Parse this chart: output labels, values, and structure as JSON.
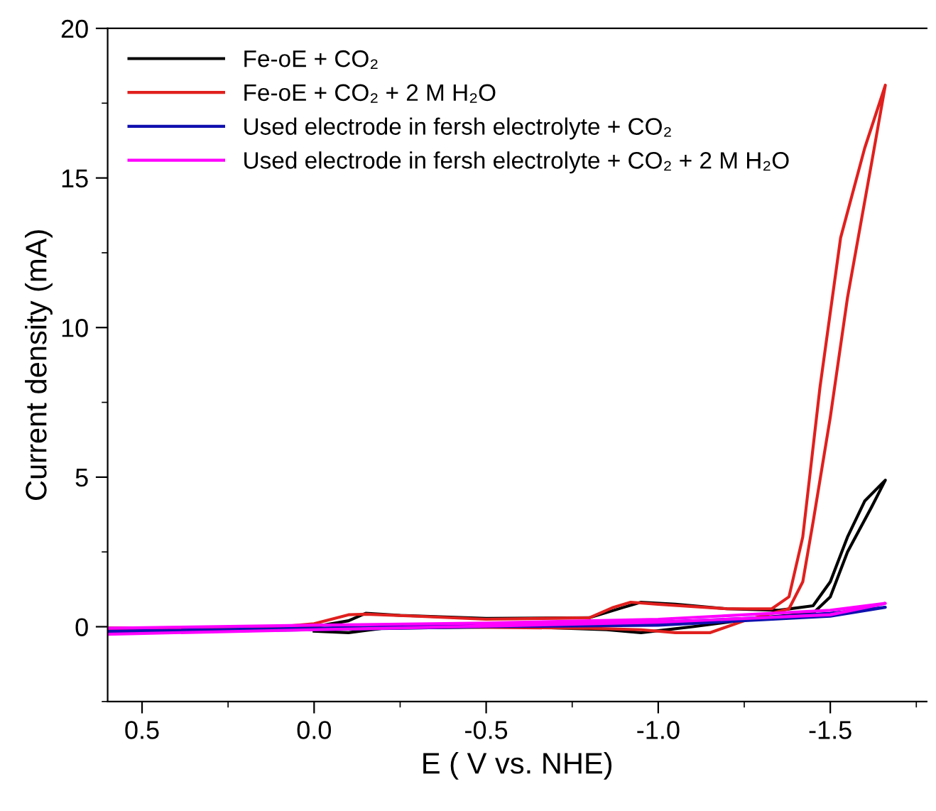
{
  "chart_data": {
    "type": "line",
    "xlabel": "E ( V vs. NHE)",
    "ylabel": "Current density (mA)",
    "xlim": [
      0.6,
      -1.78
    ],
    "ylim": [
      -2.5,
      20
    ],
    "xticks": [
      0.5,
      {
        "value": 0,
        "label": "0.0"
      },
      -0.5,
      {
        "value": -1,
        "label": "-1.0"
      },
      -1.5
    ],
    "yticks": [
      0,
      5,
      10,
      15,
      20
    ],
    "legend": "top left",
    "grid": false,
    "marker": "none",
    "line_style": "solid",
    "series": [
      {
        "name": "Fe-oE + CO₂",
        "color": "#000000",
        "x": [
          0.6,
          0.2,
          0.0,
          -0.1,
          -0.15,
          -0.25,
          -0.5,
          -0.8,
          -0.9,
          -0.95,
          -1.05,
          -1.2,
          -1.35,
          -1.45,
          -1.5,
          -1.55,
          -1.6,
          -1.66,
          -1.62,
          -1.55,
          -1.5,
          -1.45,
          -1.3,
          -1.1,
          -0.95,
          -0.85,
          -0.6,
          -0.2,
          -0.1,
          0.0
        ],
        "values": [
          -0.05,
          -0.05,
          0.0,
          0.2,
          0.45,
          0.38,
          0.28,
          0.3,
          0.65,
          0.82,
          0.75,
          0.6,
          0.55,
          0.7,
          1.5,
          3.0,
          4.2,
          4.9,
          4.0,
          2.5,
          1.0,
          0.45,
          0.3,
          0.0,
          -0.2,
          -0.1,
          0.0,
          -0.05,
          -0.2,
          -0.15
        ]
      },
      {
        "name": "Fe-oE + CO₂ + 2 M H₂O",
        "color": "#e0201e",
        "x": [
          0.6,
          0.1,
          0.0,
          -0.1,
          -0.15,
          -0.3,
          -0.5,
          -0.8,
          -0.87,
          -0.92,
          -1.0,
          -1.2,
          -1.33,
          -1.38,
          -1.42,
          -1.47,
          -1.53,
          -1.6,
          -1.66,
          -1.62,
          -1.55,
          -1.5,
          -1.45,
          -1.42,
          -1.38,
          -1.25,
          -1.15,
          -1.05,
          -0.95,
          -0.8,
          -0.3,
          -0.1
        ],
        "values": [
          -0.05,
          0.0,
          0.1,
          0.4,
          0.42,
          0.35,
          0.25,
          0.3,
          0.65,
          0.82,
          0.75,
          0.6,
          0.6,
          1.0,
          3.0,
          8,
          13,
          16,
          18.1,
          15.5,
          11,
          7,
          3.5,
          1.5,
          0.6,
          0.2,
          -0.2,
          -0.2,
          -0.1,
          -0.05,
          0.0,
          -0.05
        ]
      },
      {
        "name": "Used electrode in fersh electrolyte + CO₂",
        "color": "#1010b0",
        "x": [
          0.6,
          0.0,
          -0.5,
          -1.0,
          -1.3,
          -1.5,
          -1.66,
          -1.5,
          -1.0,
          -0.5,
          0.0,
          0.6
        ],
        "values": [
          -0.15,
          -0.05,
          0.05,
          0.15,
          0.3,
          0.45,
          0.65,
          0.35,
          0.05,
          0.0,
          -0.1,
          -0.2
        ]
      },
      {
        "name": "Used electrode in fersh electrolyte + CO₂ + 2 M H₂O",
        "color": "#ff00ff",
        "x": [
          0.6,
          0.0,
          -0.5,
          -1.0,
          -1.5,
          -1.66,
          -1.5,
          -1.0,
          -0.5,
          0.0,
          0.6
        ],
        "values": [
          -0.05,
          0.05,
          0.12,
          0.25,
          0.55,
          0.78,
          0.4,
          0.15,
          0.02,
          -0.1,
          -0.25
        ]
      }
    ]
  }
}
